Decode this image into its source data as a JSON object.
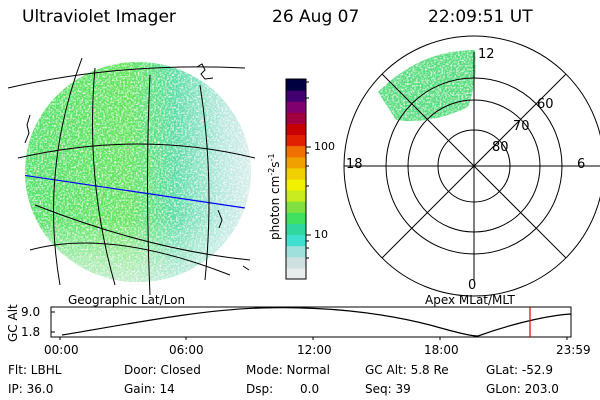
{
  "header": {
    "instrument": "Ultraviolet Imager",
    "date": "26 Aug 07",
    "time": "22:09:51 UT"
  },
  "colorbar": {
    "unit_label": "photon cm",
    "unit_exp1": "-2",
    "unit_mid": "s",
    "unit_exp2": "-1",
    "tick_labels": [
      "100",
      "10"
    ],
    "colors": [
      "#e8ecec",
      "#cfe0e0",
      "#9fe0dc",
      "#40e0d0",
      "#30d8a0",
      "#40e060",
      "#80e040",
      "#c8ec20",
      "#f0f000",
      "#f0d000",
      "#f0a000",
      "#f07000",
      "#e02000",
      "#c80000",
      "#a00040",
      "#800070",
      "#400070",
      "#000040"
    ]
  },
  "polar": {
    "labels": {
      "top": "12",
      "bottom": "0",
      "left": "18",
      "right": "6"
    },
    "lat_labels": [
      "60",
      "70",
      "80"
    ]
  },
  "map_labels": {
    "left": "Geographic Lat/Lon",
    "right": "Apex MLat/MLT"
  },
  "altitude_plot": {
    "ylabel": "GC Alt",
    "y_ticks": [
      "9.0",
      "1.8"
    ],
    "x_ticks": [
      "00:00",
      "06:00",
      "12:00",
      "18:00",
      "23:59"
    ],
    "marker_color": "#e00000"
  },
  "info": {
    "row1": {
      "filter": "Flt: LBHL",
      "door": "Door: Closed",
      "mode": "Mode: Normal",
      "gc_alt": "GC Alt: 5.8 Re",
      "glat": "GLat: -52.9"
    },
    "row2": {
      "ip": "IP: 36.0",
      "gain": "Gain: 14",
      "dsp_label": "Dsp:",
      "dsp_value": "0.0",
      "seq": "Seq: 39",
      "glon": "GLon: 203.0"
    }
  }
}
